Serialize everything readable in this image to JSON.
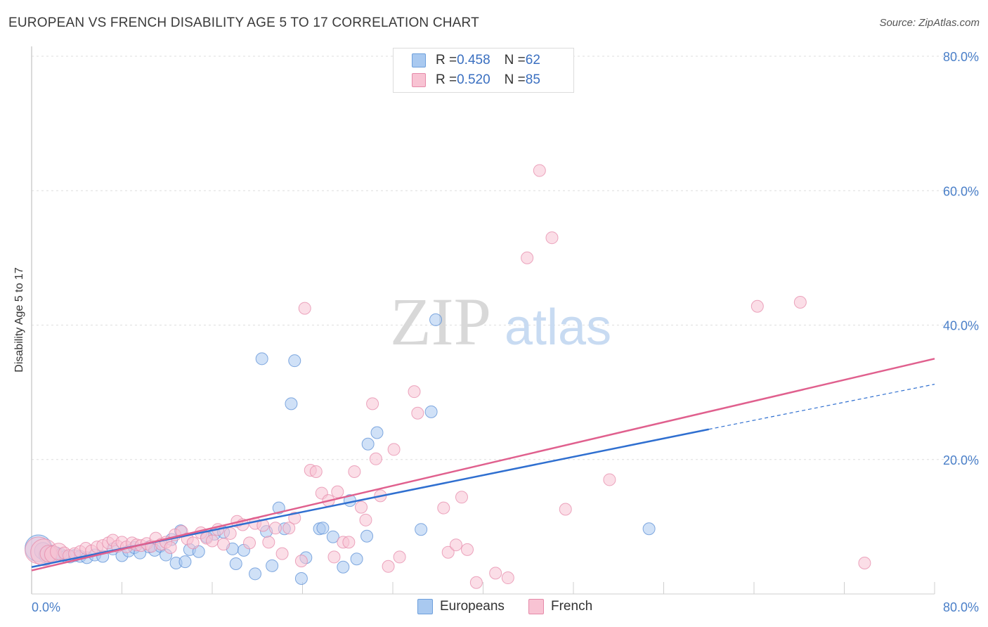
{
  "title": "EUROPEAN VS FRENCH DISABILITY AGE 5 TO 17 CORRELATION CHART",
  "source": "Source: ZipAtlas.com",
  "watermark": {
    "zip": "ZIP",
    "atlas": "atlas"
  },
  "legend": {
    "rows": [
      {
        "r_label": "R = ",
        "r_value": "0.458",
        "n_label": "N = ",
        "n_value": "62",
        "color": "#a9c9f0",
        "border": "#6d9fdc"
      },
      {
        "r_label": "R = ",
        "r_value": "0.520",
        "n_label": "N = ",
        "n_value": "85",
        "color": "#f8c3d3",
        "border": "#e58aa9"
      }
    ]
  },
  "bottom_legend": {
    "europeans": "Europeans",
    "french": "French"
  },
  "chart_data": {
    "type": "scatter",
    "title": "EUROPEAN VS FRENCH DISABILITY AGE 5 TO 17 CORRELATION CHART",
    "xlabel": "",
    "ylabel": "Disability Age 5 to 17",
    "xlim": [
      0,
      80
    ],
    "ylim": [
      0,
      80
    ],
    "x_tick_labels": [
      "0.0%",
      "80.0%"
    ],
    "y_tick_labels": [
      "20.0%",
      "40.0%",
      "60.0%",
      "80.0%"
    ],
    "y_tick_values": [
      20,
      40,
      60,
      80
    ],
    "grid": true,
    "series": [
      {
        "name": "Europeans",
        "color": "#5b8fd6",
        "fill": "#a9c9f0",
        "trend": {
          "x0": 0,
          "y0": 4.0,
          "x1": 60,
          "y1": 24.5,
          "dash_x1": 80,
          "dash_y1": 31.2,
          "color": "#2f6fd0"
        },
        "points": [
          [
            0.6,
            6.8,
            3
          ],
          [
            1.0,
            6.4,
            2
          ],
          [
            1.4,
            5.8,
            2
          ],
          [
            1.8,
            6.0,
            2
          ],
          [
            2.2,
            6.1,
            1
          ],
          [
            2.6,
            5.9,
            1
          ],
          [
            3.0,
            5.6,
            1
          ],
          [
            3.4,
            5.5,
            1
          ],
          [
            3.8,
            5.7,
            1
          ],
          [
            4.3,
            5.6,
            1
          ],
          [
            4.9,
            5.4,
            1
          ],
          [
            5.6,
            5.8,
            1
          ],
          [
            6.3,
            5.6,
            1
          ],
          [
            7.2,
            6.7,
            1
          ],
          [
            8.0,
            5.7,
            1
          ],
          [
            8.6,
            6.4,
            1
          ],
          [
            9.1,
            6.9,
            1
          ],
          [
            9.6,
            6.1,
            1
          ],
          [
            10.4,
            7.0,
            1
          ],
          [
            10.9,
            6.5,
            1
          ],
          [
            11.4,
            7.1,
            1
          ],
          [
            11.9,
            5.8,
            1
          ],
          [
            12.4,
            8.1,
            1
          ],
          [
            12.8,
            4.6,
            1
          ],
          [
            13.2,
            9.4,
            1
          ],
          [
            13.6,
            4.8,
            1
          ],
          [
            14.0,
            6.6,
            1
          ],
          [
            14.8,
            6.3,
            1
          ],
          [
            15.5,
            8.5,
            1
          ],
          [
            16.2,
            8.9,
            1
          ],
          [
            17.0,
            9.2,
            1
          ],
          [
            17.8,
            6.7,
            1
          ],
          [
            18.1,
            4.5,
            1
          ],
          [
            18.8,
            6.5,
            1
          ],
          [
            19.8,
            3.0,
            1
          ],
          [
            20.4,
            35.0,
            1
          ],
          [
            20.8,
            9.3,
            1
          ],
          [
            21.3,
            4.2,
            1
          ],
          [
            21.9,
            12.8,
            1
          ],
          [
            22.4,
            9.7,
            1
          ],
          [
            23.0,
            28.3,
            1
          ],
          [
            23.3,
            34.7,
            1
          ],
          [
            23.9,
            2.3,
            1
          ],
          [
            24.3,
            5.4,
            1
          ],
          [
            25.5,
            9.7,
            1
          ],
          [
            25.8,
            9.8,
            1
          ],
          [
            26.7,
            8.5,
            1
          ],
          [
            27.6,
            4.0,
            1
          ],
          [
            28.2,
            13.9,
            1
          ],
          [
            28.8,
            5.2,
            1
          ],
          [
            29.7,
            8.6,
            1
          ],
          [
            29.8,
            22.3,
            1
          ],
          [
            30.6,
            24.0,
            1
          ],
          [
            34.5,
            9.6,
            1
          ],
          [
            35.4,
            27.1,
            1
          ],
          [
            35.8,
            40.8,
            1
          ],
          [
            54.7,
            9.7,
            1
          ]
        ]
      },
      {
        "name": "French",
        "color": "#e58aa9",
        "fill": "#f8c3d3",
        "trend": {
          "x0": 0,
          "y0": 3.5,
          "x1": 80,
          "y1": 35.0,
          "color": "#e0608e"
        },
        "points": [
          [
            0.6,
            6.5,
            3
          ],
          [
            1.1,
            6.2,
            3
          ],
          [
            1.5,
            6.0,
            2
          ],
          [
            1.9,
            5.9,
            2
          ],
          [
            2.4,
            6.3,
            2
          ],
          [
            2.9,
            6.1,
            1
          ],
          [
            3.3,
            5.7,
            1
          ],
          [
            3.8,
            6.0,
            1
          ],
          [
            4.3,
            6.3,
            1
          ],
          [
            4.8,
            6.8,
            1
          ],
          [
            5.3,
            6.4,
            1
          ],
          [
            5.8,
            7.0,
            1
          ],
          [
            6.3,
            7.2,
            1
          ],
          [
            6.8,
            7.6,
            1
          ],
          [
            7.2,
            8.0,
            1
          ],
          [
            7.6,
            7.1,
            1
          ],
          [
            8.0,
            7.7,
            1
          ],
          [
            8.4,
            7.0,
            1
          ],
          [
            8.9,
            7.6,
            1
          ],
          [
            9.3,
            7.3,
            1
          ],
          [
            9.7,
            7.2,
            1
          ],
          [
            10.2,
            7.5,
            1
          ],
          [
            10.6,
            7.1,
            1
          ],
          [
            11.0,
            8.3,
            1
          ],
          [
            11.5,
            7.4,
            1
          ],
          [
            11.9,
            7.7,
            1
          ],
          [
            12.3,
            6.9,
            1
          ],
          [
            12.7,
            8.8,
            1
          ],
          [
            13.3,
            9.3,
            1
          ],
          [
            13.8,
            8.2,
            1
          ],
          [
            14.3,
            7.6,
            1
          ],
          [
            15.0,
            9.1,
            1
          ],
          [
            15.5,
            8.3,
            1
          ],
          [
            16.0,
            7.9,
            1
          ],
          [
            16.5,
            9.6,
            1
          ],
          [
            17.0,
            7.4,
            1
          ],
          [
            17.6,
            9.0,
            1
          ],
          [
            18.2,
            10.8,
            1
          ],
          [
            18.7,
            10.3,
            1
          ],
          [
            19.3,
            7.6,
            1
          ],
          [
            19.8,
            10.5,
            1
          ],
          [
            20.5,
            10.2,
            1
          ],
          [
            21.0,
            7.7,
            1
          ],
          [
            21.6,
            9.8,
            1
          ],
          [
            22.2,
            6.0,
            1
          ],
          [
            22.8,
            9.8,
            1
          ],
          [
            23.3,
            11.3,
            1
          ],
          [
            23.9,
            4.9,
            1
          ],
          [
            24.2,
            42.5,
            1
          ],
          [
            24.7,
            18.4,
            1
          ],
          [
            25.2,
            18.2,
            1
          ],
          [
            25.7,
            15.0,
            1
          ],
          [
            26.3,
            13.9,
            1
          ],
          [
            26.8,
            5.5,
            1
          ],
          [
            27.1,
            15.2,
            1
          ],
          [
            27.6,
            7.7,
            1
          ],
          [
            28.1,
            7.7,
            1
          ],
          [
            28.6,
            18.2,
            1
          ],
          [
            29.2,
            12.9,
            1
          ],
          [
            29.6,
            11.0,
            1
          ],
          [
            30.2,
            28.3,
            1
          ],
          [
            30.5,
            20.1,
            1
          ],
          [
            30.9,
            14.6,
            1
          ],
          [
            31.6,
            4.1,
            1
          ],
          [
            32.1,
            21.5,
            1
          ],
          [
            32.6,
            5.5,
            1
          ],
          [
            33.9,
            30.1,
            1
          ],
          [
            34.2,
            26.9,
            1
          ],
          [
            36.5,
            12.8,
            1
          ],
          [
            36.9,
            6.2,
            1
          ],
          [
            37.6,
            7.3,
            1
          ],
          [
            38.1,
            14.4,
            1
          ],
          [
            38.6,
            6.6,
            1
          ],
          [
            39.4,
            1.7,
            1
          ],
          [
            41.1,
            3.1,
            1
          ],
          [
            42.2,
            2.4,
            1
          ],
          [
            43.9,
            50.0,
            1
          ],
          [
            45.0,
            63.0,
            1
          ],
          [
            46.1,
            53.0,
            1
          ],
          [
            47.3,
            12.6,
            1
          ],
          [
            51.2,
            17.0,
            1
          ],
          [
            64.3,
            42.8,
            1
          ],
          [
            68.1,
            43.4,
            1
          ],
          [
            73.8,
            4.6,
            1
          ]
        ]
      }
    ]
  }
}
